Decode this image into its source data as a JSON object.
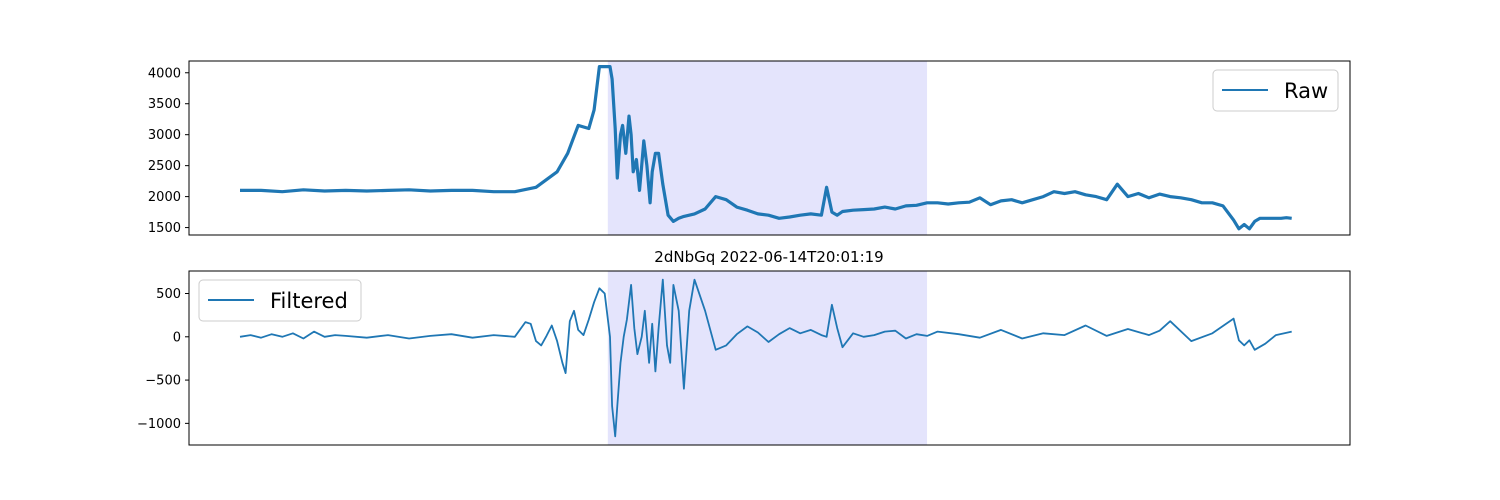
{
  "title": "2dNbGq 2022-06-14T20:01:19",
  "colors": {
    "line": "#1f77b4",
    "shade": "#e4e4fc",
    "axes": "#000000"
  },
  "chart_data": [
    {
      "type": "line",
      "legend": "Raw",
      "legend_loc": "upper right",
      "x_ticks_visible": false,
      "ylim": [
        1380,
        4190
      ],
      "yticks": [
        1500,
        2000,
        2500,
        3000,
        3500,
        4000
      ],
      "ytick_labels": [
        "1500",
        "2000",
        "2500",
        "3000",
        "3500",
        "4000"
      ],
      "xlim": [
        0,
        1000
      ],
      "shaded_region": [
        348,
        650
      ],
      "line_width": 3.2,
      "series": [
        {
          "x": [
            0,
            20,
            40,
            60,
            80,
            100,
            120,
            140,
            160,
            180,
            200,
            220,
            240,
            260,
            280,
            300,
            310,
            320,
            330,
            335,
            340,
            345,
            348,
            350,
            352,
            355,
            357,
            360,
            362,
            365,
            368,
            370,
            372,
            375,
            378,
            380,
            382,
            385,
            388,
            390,
            393,
            396,
            400,
            405,
            410,
            415,
            420,
            425,
            430,
            440,
            450,
            460,
            470,
            480,
            490,
            500,
            510,
            520,
            530,
            540,
            550,
            555,
            560,
            565,
            570,
            580,
            590,
            600,
            610,
            620,
            630,
            640,
            650,
            660,
            670,
            680,
            690,
            700,
            710,
            720,
            730,
            740,
            750,
            760,
            770,
            780,
            790,
            800,
            810,
            820,
            830,
            840,
            850,
            860,
            870,
            880,
            890,
            900,
            910,
            920,
            930,
            940,
            945,
            950,
            955,
            960,
            965,
            970,
            975,
            980,
            985,
            990,
            995
          ],
          "y": [
            2100,
            2100,
            2080,
            2110,
            2090,
            2100,
            2090,
            2100,
            2110,
            2090,
            2100,
            2100,
            2080,
            2080,
            2150,
            2400,
            2700,
            3150,
            3100,
            3400,
            4100,
            4100,
            4100,
            4100,
            3900,
            3100,
            2300,
            3000,
            3150,
            2700,
            3300,
            3000,
            2400,
            2600,
            2100,
            2500,
            2900,
            2500,
            1900,
            2400,
            2700,
            2700,
            2200,
            1700,
            1600,
            1650,
            1680,
            1700,
            1720,
            1800,
            2000,
            1950,
            1830,
            1780,
            1720,
            1700,
            1650,
            1670,
            1700,
            1720,
            1700,
            2150,
            1750,
            1700,
            1760,
            1780,
            1790,
            1800,
            1830,
            1800,
            1850,
            1860,
            1900,
            1900,
            1880,
            1900,
            1910,
            1980,
            1870,
            1930,
            1950,
            1900,
            1950,
            2000,
            2080,
            2050,
            2080,
            2030,
            2000,
            1950,
            2200,
            2000,
            2050,
            1980,
            2040,
            2000,
            1980,
            1950,
            1900,
            1900,
            1850,
            1620,
            1480,
            1550,
            1480,
            1600,
            1650,
            1650,
            1650,
            1650,
            1650,
            1660,
            1650
          ]
        }
      ]
    },
    {
      "type": "line",
      "legend": "Filtered",
      "legend_loc": "upper left",
      "x_ticks_visible": false,
      "ylim": [
        -1250,
        760
      ],
      "yticks": [
        -1000,
        -500,
        0,
        500
      ],
      "ytick_labels": [
        "−1000",
        "−500",
        "0",
        "500"
      ],
      "xlim": [
        0,
        1000
      ],
      "shaded_region": [
        348,
        650
      ],
      "line_width": 1.8,
      "series": [
        {
          "x": [
            0,
            10,
            20,
            30,
            40,
            50,
            60,
            70,
            80,
            90,
            100,
            120,
            140,
            160,
            180,
            200,
            220,
            240,
            260,
            270,
            275,
            280,
            285,
            290,
            295,
            300,
            305,
            308,
            312,
            316,
            320,
            325,
            330,
            335,
            340,
            345,
            350,
            352,
            355,
            357,
            360,
            363,
            366,
            370,
            373,
            376,
            380,
            383,
            387,
            390,
            393,
            396,
            400,
            404,
            407,
            410,
            415,
            420,
            425,
            430,
            440,
            450,
            460,
            470,
            480,
            490,
            500,
            510,
            520,
            530,
            540,
            550,
            555,
            560,
            565,
            570,
            580,
            590,
            600,
            610,
            620,
            630,
            640,
            650,
            660,
            680,
            700,
            720,
            740,
            760,
            780,
            800,
            820,
            840,
            860,
            870,
            880,
            900,
            920,
            940,
            945,
            950,
            955,
            960,
            970,
            980,
            995
          ],
          "y": [
            0,
            20,
            -10,
            30,
            0,
            40,
            -20,
            60,
            0,
            20,
            10,
            -10,
            20,
            -20,
            10,
            30,
            -10,
            20,
            0,
            170,
            150,
            -50,
            -100,
            10,
            130,
            -50,
            -300,
            -420,
            180,
            300,
            80,
            20,
            200,
            400,
            560,
            500,
            0,
            -800,
            -1150,
            -800,
            -300,
            0,
            200,
            600,
            100,
            -200,
            0,
            300,
            -300,
            150,
            -400,
            100,
            660,
            -100,
            -300,
            600,
            300,
            -600,
            300,
            660,
            300,
            -150,
            -100,
            30,
            120,
            50,
            -60,
            30,
            100,
            40,
            80,
            20,
            0,
            370,
            100,
            -120,
            40,
            0,
            20,
            60,
            70,
            -20,
            30,
            10,
            60,
            30,
            -10,
            80,
            -20,
            40,
            20,
            130,
            10,
            90,
            20,
            70,
            180,
            -50,
            40,
            210,
            -40,
            -100,
            -40,
            -150,
            -80,
            20,
            60
          ]
        }
      ]
    }
  ]
}
